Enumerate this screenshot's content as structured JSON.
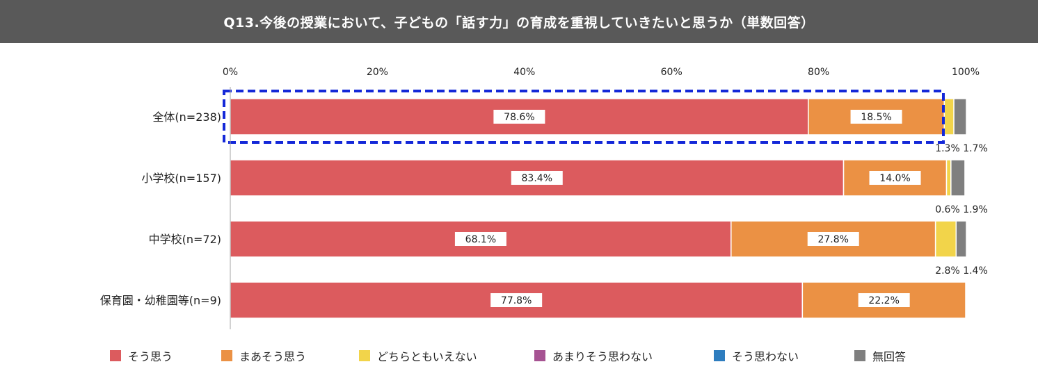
{
  "title": "Q13.今後の授業において、子どもの「話す力」の育成を重視していきたいと思うか（単数回答）",
  "chart_data": {
    "type": "bar",
    "orientation": "horizontal",
    "stacked": true,
    "percent_stacked": true,
    "categories": [
      "全体(n=238)",
      "小学校(n=157)",
      "中学校(n=72)",
      "保育園・幼稚園等(n=9)"
    ],
    "xlim": [
      0,
      100
    ],
    "x_ticks": [
      "0%",
      "20%",
      "40%",
      "60%",
      "80%",
      "100%"
    ],
    "series": [
      {
        "name": "そう思う",
        "color": "#DC5B5E",
        "values": [
          78.6,
          83.4,
          68.1,
          77.8
        ]
      },
      {
        "name": "まあそう思う",
        "color": "#EB9144",
        "values": [
          18.5,
          14.0,
          27.8,
          22.2
        ]
      },
      {
        "name": "どちらともいえない",
        "color": "#F2D44A",
        "values": [
          1.3,
          0.6,
          2.8,
          0
        ]
      },
      {
        "name": "あまりそう思わない",
        "color": "#A65392",
        "values": [
          0,
          0,
          0,
          0
        ]
      },
      {
        "name": "そう思わない",
        "color": "#2E7DBF",
        "values": [
          0,
          0,
          0,
          0
        ]
      },
      {
        "name": "無回答",
        "color": "#7F7F7F",
        "values": [
          1.7,
          1.9,
          1.4,
          0
        ]
      }
    ],
    "data_labels": [
      {
        "row": 0,
        "inside": [
          "78.6%",
          "18.5%"
        ],
        "outside": [
          "1.3%",
          "1.7%"
        ]
      },
      {
        "row": 1,
        "inside": [
          "83.4%",
          "14.0%"
        ],
        "outside": [
          "0.6%",
          "1.9%"
        ]
      },
      {
        "row": 2,
        "inside": [
          "68.1%",
          "27.8%"
        ],
        "outside": [
          "2.8%",
          "1.4%"
        ]
      },
      {
        "row": 3,
        "inside": [
          "77.8%",
          "22.2%"
        ],
        "outside": []
      }
    ],
    "highlight_row": 0,
    "highlight_color": "#1428D8",
    "legend_position": "bottom"
  }
}
